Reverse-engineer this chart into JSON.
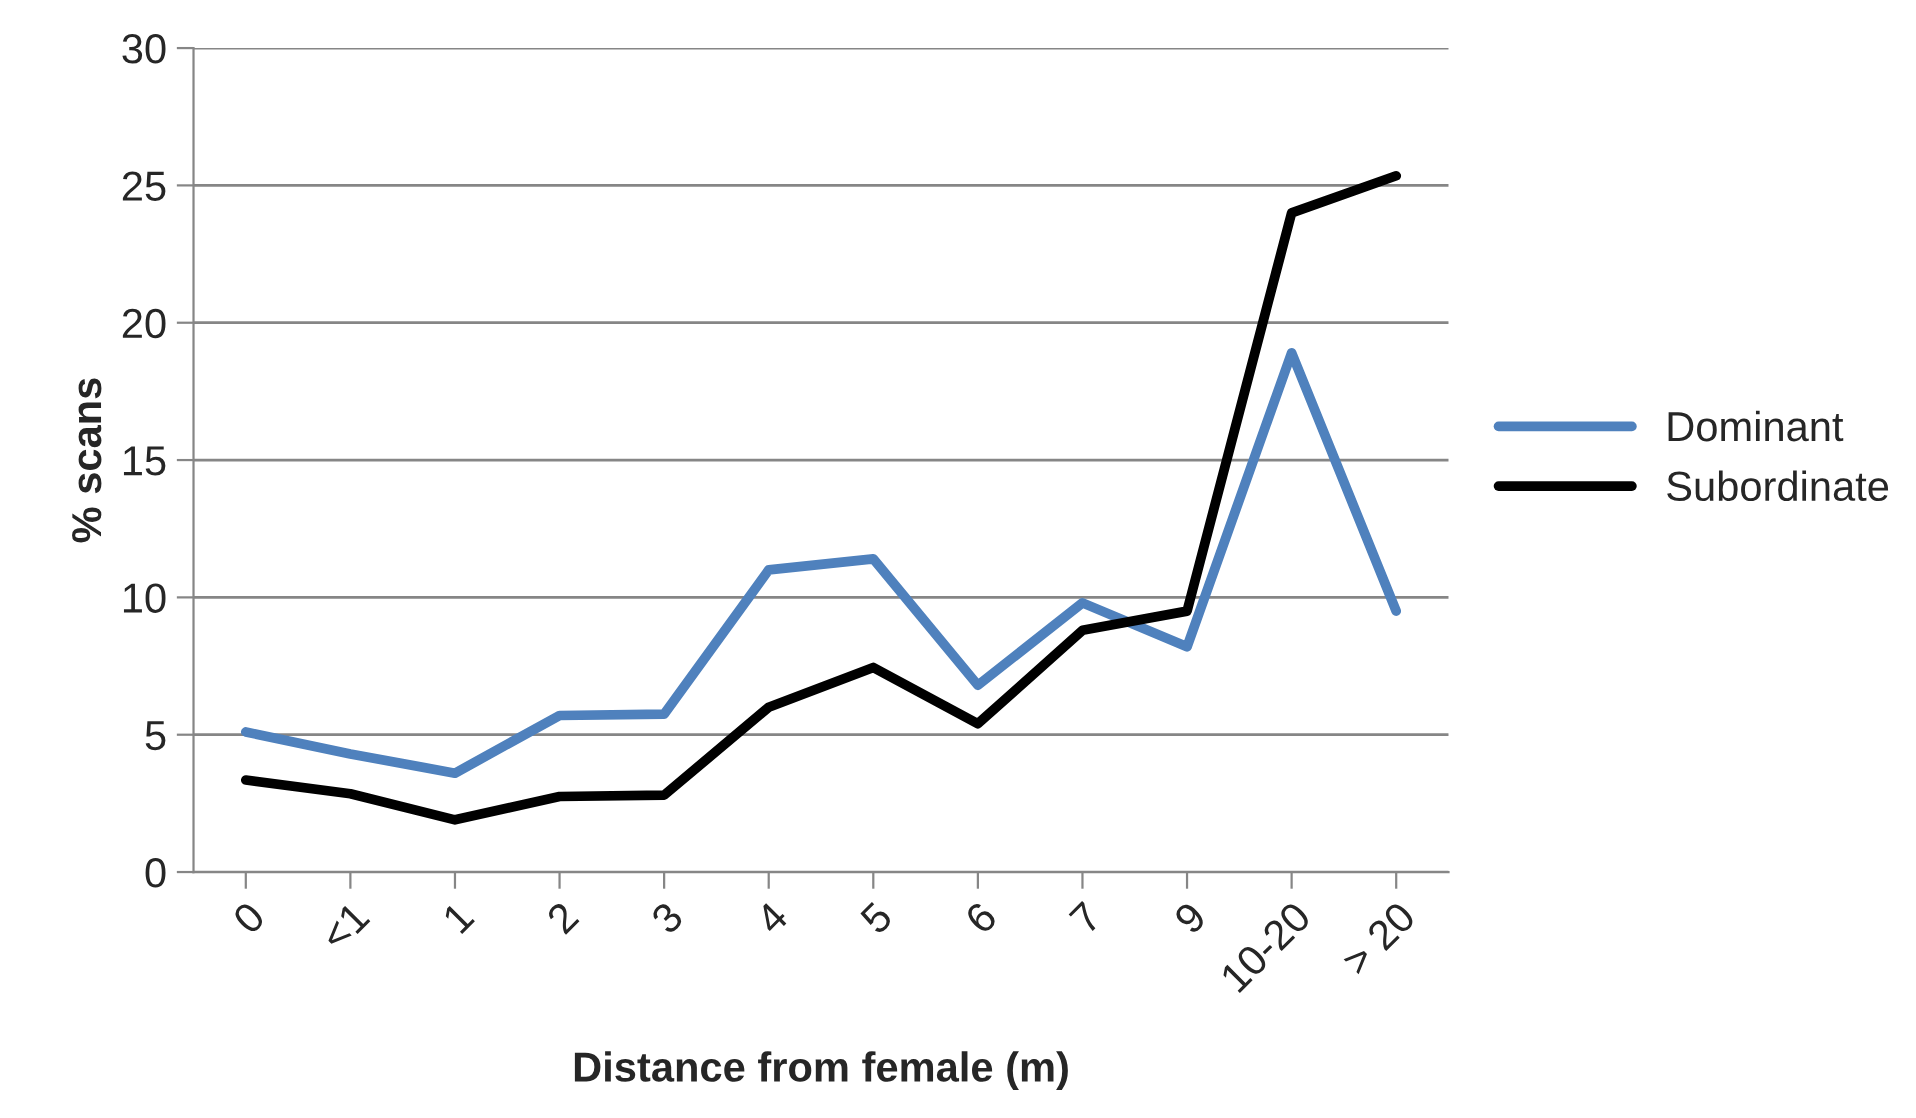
{
  "chart_data": {
    "type": "line",
    "xlabel": "Distance from female (m)",
    "ylabel": "% scans",
    "categories": [
      "0",
      "<1",
      "1",
      "2",
      "3",
      "4",
      "5",
      "6",
      "7",
      "9",
      "10-20",
      "> 20"
    ],
    "series": [
      {
        "name": "Dominant",
        "color": "#4f81bd",
        "values": [
          5.1,
          4.3,
          3.6,
          5.7,
          5.75,
          11.0,
          11.4,
          6.8,
          9.8,
          8.2,
          18.9,
          9.5
        ]
      },
      {
        "name": "Subordinate",
        "color": "#000000",
        "values": [
          3.35,
          2.85,
          1.9,
          2.75,
          2.8,
          6.0,
          7.45,
          5.4,
          8.8,
          9.5,
          24.0,
          25.35
        ]
      }
    ],
    "ylim": [
      0,
      30
    ],
    "yticks": [
      0,
      5,
      10,
      15,
      20,
      25,
      30
    ],
    "grid": "y",
    "legend": "right",
    "marker": "none",
    "line_style": "solid"
  }
}
